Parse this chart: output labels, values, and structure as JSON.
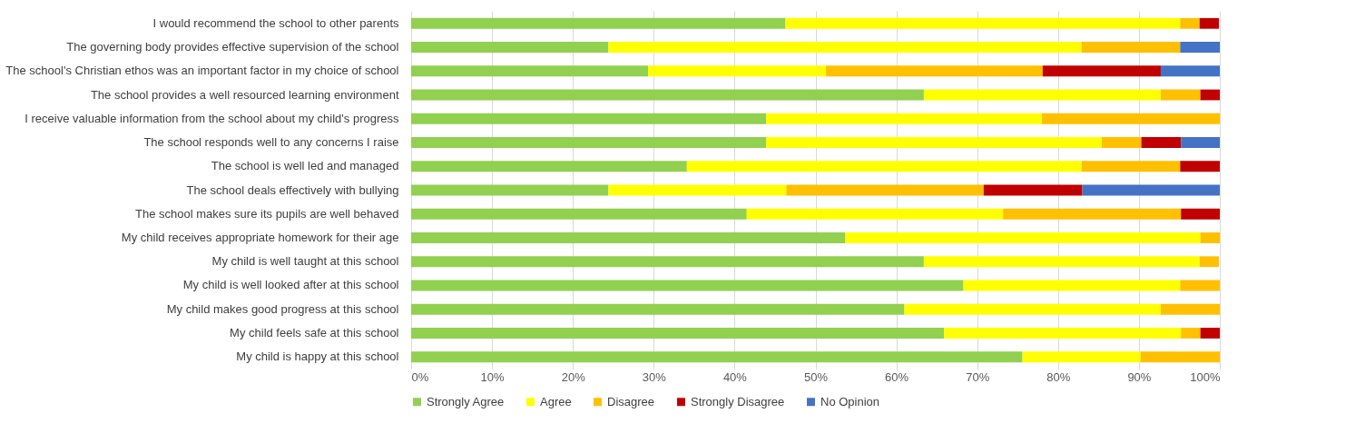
{
  "chart_data": {
    "type": "bar",
    "orientation": "horizontal",
    "stacked": true,
    "categories": [
      "I would recommend the school to other parents",
      "The governing body provides effective supervision of the school",
      "The school's Christian ethos was an important factor in my choice of school",
      "The school provides a well resourced learning environment",
      "I receive valuable information from the school about my child's progress",
      "The school responds well to any concerns I raise",
      "The school is well led and managed",
      "The school deals effectively with bullying",
      "The school makes sure its pupils are well behaved",
      "My child receives appropriate homework for their age",
      "My child is well taught at this school",
      "My child is well looked after at this school",
      "My child makes good progress at this school",
      "My child feels safe at this school",
      "My child is happy at this school"
    ],
    "series": [
      {
        "name": "Strongly Agree",
        "color": "#92d050",
        "values": [
          46.3,
          24.4,
          29.3,
          63.4,
          43.9,
          43.9,
          34.1,
          24.4,
          41.5,
          53.7,
          63.4,
          68.3,
          61.0,
          65.9,
          75.6
        ]
      },
      {
        "name": "Agree",
        "color": "#ffff00",
        "values": [
          48.8,
          58.5,
          22.0,
          29.3,
          34.1,
          41.5,
          48.8,
          22.0,
          31.7,
          43.9,
          34.1,
          26.8,
          31.7,
          29.3,
          14.6
        ]
      },
      {
        "name": "Disagree",
        "color": "#ffc000",
        "values": [
          2.4,
          12.2,
          26.8,
          4.9,
          22.0,
          4.9,
          12.2,
          24.4,
          22.0,
          2.4,
          2.4,
          4.9,
          7.3,
          2.4,
          9.8
        ]
      },
      {
        "name": "Strongly Disagree",
        "color": "#c00000",
        "values": [
          2.4,
          0,
          14.6,
          2.4,
          0,
          4.9,
          4.9,
          12.2,
          4.8,
          0,
          0,
          0,
          0,
          2.4,
          0
        ]
      },
      {
        "name": "No  Opinion",
        "color": "#4472c4",
        "values": [
          0,
          4.9,
          7.3,
          0,
          0,
          4.8,
          0,
          17.0,
          0,
          0,
          0,
          0,
          0,
          0,
          0
        ]
      }
    ],
    "xlim": [
      0,
      100
    ],
    "xticks": [
      {
        "value": 0,
        "label": "0%"
      },
      {
        "value": 10,
        "label": "10%"
      },
      {
        "value": 20,
        "label": "20%"
      },
      {
        "value": 30,
        "label": "30%"
      },
      {
        "value": 40,
        "label": "40%"
      },
      {
        "value": 50,
        "label": "50%"
      },
      {
        "value": 60,
        "label": "60%"
      },
      {
        "value": 70,
        "label": "70%"
      },
      {
        "value": 80,
        "label": "80%"
      },
      {
        "value": 90,
        "label": "90%"
      },
      {
        "value": 100,
        "label": "100%"
      }
    ],
    "grid": "x",
    "legend": "bottom"
  }
}
